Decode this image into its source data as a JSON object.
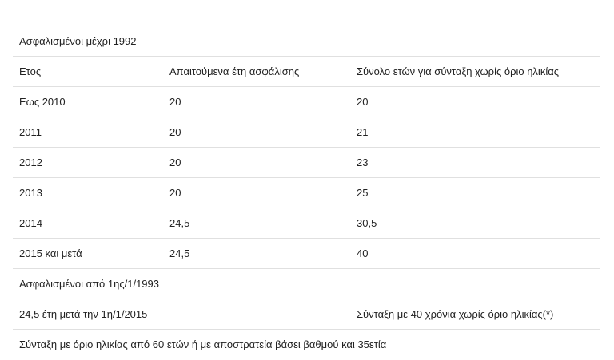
{
  "section_1993_before": "Ασφαλισμένοι μέχρι 1992",
  "headers": {
    "year": "Ετος",
    "required": "Απαιτούμενα έτη ασφάλισης",
    "total": "Σύνολο ετών για σύνταξη χωρίς όριο ηλικίας"
  },
  "rows": [
    {
      "year": "Εως 2010",
      "required": "20",
      "total": "20"
    },
    {
      "year": "2011",
      "required": "20",
      "total": "21"
    },
    {
      "year": "2012",
      "required": "20",
      "total": "23"
    },
    {
      "year": "2013",
      "required": "20",
      "total": "25"
    },
    {
      "year": "2014",
      "required": "24,5",
      "total": "30,5"
    },
    {
      "year": "2015 και μετά",
      "required": "24,5",
      "total": "40"
    }
  ],
  "section_1993_after": "Ασφαλισμένοι από 1ης/1/1993",
  "after_row": {
    "left": "24,5 έτη μετά την 1η/1/2015",
    "right": "Σύνταξη με 40 χρόνια χωρίς όριο ηλικίας(*)"
  },
  "footer_note": "Σύνταξη με όριο ηλικίας από 60 ετών ή με αποστρατεία βάσει βαθμού και 35ετία"
}
